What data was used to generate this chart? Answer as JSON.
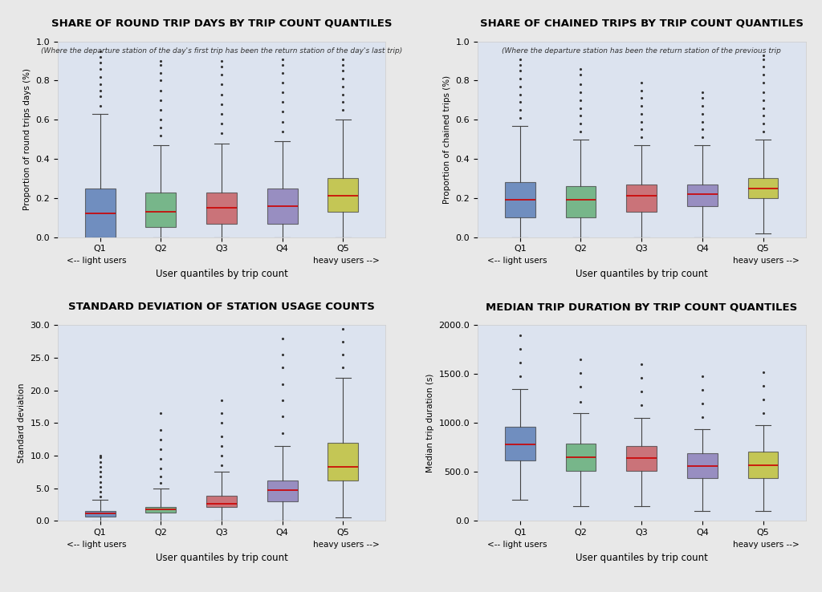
{
  "colors": [
    "#4c72b0",
    "#55a868",
    "#c44e52",
    "#8172b2",
    "#bcbd22"
  ],
  "background_color": "#dce3ef",
  "fig_background": "#e8e8e8",
  "plot1": {
    "title": "SHARE OF ROUND TRIP DAYS BY TRIP COUNT QUANTILES",
    "subtitle": "(Where the departure station of the day's first trip has been the return station of the day's last trip)",
    "ylabel": "Proportion of round trips days (%)",
    "xlabel": "User quantiles by trip count",
    "ylim": [
      0.0,
      1.0
    ],
    "yticks": [
      0.0,
      0.2,
      0.4,
      0.6,
      0.8,
      1.0
    ],
    "ytick_labels": [
      "0.0",
      "0.2",
      "0.4",
      "0.6",
      "0.8",
      "1.0"
    ],
    "boxes": [
      {
        "whislo": 0.0,
        "q1": 0.0,
        "med": 0.12,
        "q3": 0.25,
        "whishi": 0.63,
        "fliers_high": [
          0.67,
          0.72,
          0.75,
          0.78,
          0.82,
          0.86,
          0.89,
          0.92,
          0.95
        ]
      },
      {
        "whislo": 0.0,
        "q1": 0.05,
        "med": 0.13,
        "q3": 0.23,
        "whishi": 0.47,
        "fliers_high": [
          0.52,
          0.56,
          0.6,
          0.65,
          0.7,
          0.75,
          0.8,
          0.84,
          0.88,
          0.9
        ]
      },
      {
        "whislo": 0.0,
        "q1": 0.07,
        "med": 0.15,
        "q3": 0.23,
        "whishi": 0.48,
        "fliers_high": [
          0.53,
          0.58,
          0.63,
          0.68,
          0.73,
          0.78,
          0.83,
          0.87,
          0.9
        ]
      },
      {
        "whislo": 0.0,
        "q1": 0.07,
        "med": 0.16,
        "q3": 0.25,
        "whishi": 0.49,
        "fliers_high": [
          0.54,
          0.59,
          0.64,
          0.69,
          0.74,
          0.79,
          0.84,
          0.88,
          0.91
        ]
      },
      {
        "whislo": 0.0,
        "q1": 0.13,
        "med": 0.21,
        "q3": 0.3,
        "whishi": 0.6,
        "fliers_high": [
          0.65,
          0.69,
          0.73,
          0.77,
          0.81,
          0.85,
          0.88,
          0.91
        ]
      }
    ]
  },
  "plot2": {
    "title": "SHARE OF CHAINED TRIPS BY TRIP COUNT QUANTILES",
    "subtitle": "(Where the departure station has been the return station of the previous trip",
    "ylabel": "Proportion of chained trips (%)",
    "xlabel": "User quantiles by trip count",
    "ylim": [
      0.0,
      1.0
    ],
    "yticks": [
      0.0,
      0.2,
      0.4,
      0.6,
      0.8,
      1.0
    ],
    "ytick_labels": [
      "0.0",
      "0.2",
      "0.4",
      "0.6",
      "0.8",
      "1.0"
    ],
    "boxes": [
      {
        "whislo": 0.0,
        "q1": 0.1,
        "med": 0.19,
        "q3": 0.28,
        "whishi": 0.57,
        "fliers_high": [
          0.61,
          0.65,
          0.69,
          0.73,
          0.77,
          0.81,
          0.85,
          0.88,
          0.91
        ]
      },
      {
        "whislo": 0.0,
        "q1": 0.1,
        "med": 0.19,
        "q3": 0.26,
        "whishi": 0.5,
        "fliers_high": [
          0.54,
          0.58,
          0.62,
          0.66,
          0.7,
          0.74,
          0.78,
          0.83,
          0.86
        ]
      },
      {
        "whislo": 0.0,
        "q1": 0.13,
        "med": 0.21,
        "q3": 0.27,
        "whishi": 0.47,
        "fliers_high": [
          0.51,
          0.55,
          0.59,
          0.63,
          0.67,
          0.71,
          0.75,
          0.79
        ]
      },
      {
        "whislo": 0.0,
        "q1": 0.16,
        "med": 0.22,
        "q3": 0.27,
        "whishi": 0.47,
        "fliers_high": [
          0.51,
          0.55,
          0.59,
          0.63,
          0.67,
          0.71,
          0.74
        ]
      },
      {
        "whislo": 0.02,
        "q1": 0.2,
        "med": 0.25,
        "q3": 0.3,
        "whishi": 0.5,
        "fliers_high": [
          0.54,
          0.58,
          0.62,
          0.66,
          0.7,
          0.74,
          0.79,
          0.83,
          0.87,
          0.91,
          0.93
        ]
      }
    ]
  },
  "plot3": {
    "title": "STANDARD DEVIATION OF STATION USAGE COUNTS",
    "subtitle": "",
    "ylabel": "Standard deviation",
    "xlabel": "User quantiles by trip count",
    "ylim": [
      0.0,
      30.0
    ],
    "yticks": [
      0.0,
      5.0,
      10.0,
      15.0,
      20.0,
      25.0,
      30.0
    ],
    "ytick_labels": [
      "0.0",
      "5.0",
      "10.0",
      "15.0",
      "20.0",
      "25.0",
      "30.0"
    ],
    "boxes": [
      {
        "whislo": 0.0,
        "q1": 0.7,
        "med": 1.1,
        "q3": 1.5,
        "whishi": 3.2,
        "fliers_high": [
          3.8,
          4.5,
          5.2,
          6.0,
          6.8,
          7.5,
          8.3,
          9.0,
          9.8,
          10.0
        ]
      },
      {
        "whislo": 0.0,
        "q1": 1.3,
        "med": 1.8,
        "q3": 2.1,
        "whishi": 5.0,
        "fliers_high": [
          5.8,
          6.8,
          8.0,
          9.5,
          11.0,
          12.5,
          14.0,
          16.5
        ]
      },
      {
        "whislo": 0.0,
        "q1": 2.1,
        "med": 2.6,
        "q3": 3.9,
        "whishi": 7.5,
        "fliers_high": [
          8.5,
          10.0,
          11.5,
          13.0,
          15.0,
          16.5,
          18.5
        ]
      },
      {
        "whislo": 0.0,
        "q1": 3.0,
        "med": 4.7,
        "q3": 6.2,
        "whishi": 11.5,
        "fliers_high": [
          13.5,
          16.0,
          18.5,
          21.0,
          23.5,
          25.5,
          28.0
        ]
      },
      {
        "whislo": 0.5,
        "q1": 6.2,
        "med": 8.3,
        "q3": 12.0,
        "whishi": 22.0,
        "fliers_high": [
          23.5,
          25.5,
          27.5,
          29.5
        ]
      }
    ]
  },
  "plot4": {
    "title": "MEDIAN TRIP DURATION BY TRIP COUNT QUANTILES",
    "subtitle": "",
    "ylabel": "Median trip duration (s)",
    "xlabel": "User quantiles by trip count",
    "ylim": [
      0.0,
      2000.0
    ],
    "yticks": [
      0.0,
      500.0,
      1000.0,
      1500.0,
      2000.0
    ],
    "ytick_labels": [
      "0.0",
      "500.0",
      "1000.0",
      "1500.0",
      "2000.0"
    ],
    "boxes": [
      {
        "whislo": 220,
        "q1": 620,
        "med": 780,
        "q3": 960,
        "whishi": 1350,
        "fliers_high": [
          1480,
          1620,
          1760,
          1900
        ]
      },
      {
        "whislo": 150,
        "q1": 510,
        "med": 650,
        "q3": 790,
        "whishi": 1100,
        "fliers_high": [
          1220,
          1370,
          1510,
          1650
        ]
      },
      {
        "whislo": 150,
        "q1": 510,
        "med": 640,
        "q3": 770,
        "whishi": 1050,
        "fliers_high": [
          1180,
          1320,
          1460,
          1600
        ]
      },
      {
        "whislo": 100,
        "q1": 440,
        "med": 560,
        "q3": 690,
        "whishi": 940,
        "fliers_high": [
          1060,
          1200,
          1340,
          1480
        ]
      },
      {
        "whislo": 100,
        "q1": 440,
        "med": 570,
        "q3": 710,
        "whishi": 980,
        "fliers_high": [
          1100,
          1240,
          1380,
          1520
        ]
      }
    ]
  },
  "categories": [
    "Q1",
    "Q2",
    "Q3",
    "Q4",
    "Q5"
  ],
  "xlabel_left": "<-- light users",
  "xlabel_right": "heavy users -->"
}
